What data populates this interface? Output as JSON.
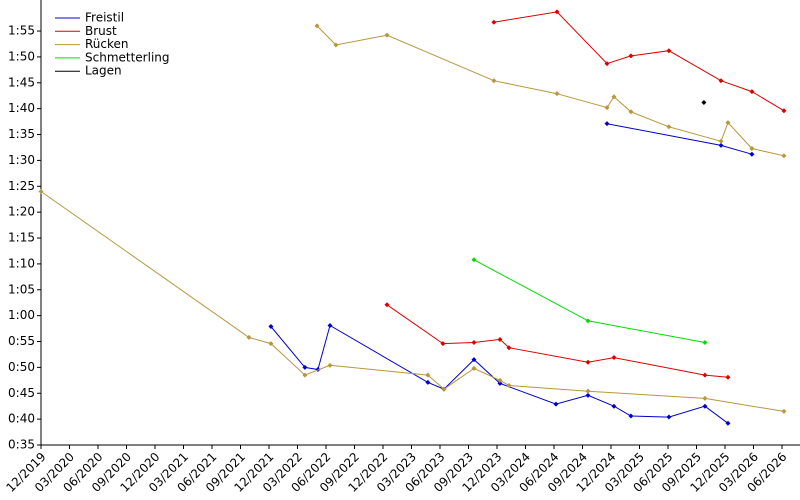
{
  "chart_data": {
    "type": "line",
    "legend": "upper left",
    "xlim": [
      2019.917,
      2026.575
    ],
    "ylim": [
      35,
      121
    ],
    "xticks": [
      {
        "value": 2019.917,
        "label": "12/2019"
      },
      {
        "value": 2020.167,
        "label": "03/2020"
      },
      {
        "value": 2020.417,
        "label": "06/2020"
      },
      {
        "value": 2020.667,
        "label": "09/2020"
      },
      {
        "value": 2020.917,
        "label": "12/2020"
      },
      {
        "value": 2021.167,
        "label": "03/2021"
      },
      {
        "value": 2021.417,
        "label": "06/2021"
      },
      {
        "value": 2021.667,
        "label": "09/2021"
      },
      {
        "value": 2021.917,
        "label": "12/2021"
      },
      {
        "value": 2022.167,
        "label": "03/2022"
      },
      {
        "value": 2022.417,
        "label": "06/2022"
      },
      {
        "value": 2022.667,
        "label": "09/2022"
      },
      {
        "value": 2022.917,
        "label": "12/2022"
      },
      {
        "value": 2023.167,
        "label": "03/2023"
      },
      {
        "value": 2023.417,
        "label": "06/2023"
      },
      {
        "value": 2023.667,
        "label": "09/2023"
      },
      {
        "value": 2023.917,
        "label": "12/2023"
      },
      {
        "value": 2024.167,
        "label": "03/2024"
      },
      {
        "value": 2024.417,
        "label": "06/2024"
      },
      {
        "value": 2024.667,
        "label": "09/2024"
      },
      {
        "value": 2024.917,
        "label": "12/2024"
      },
      {
        "value": 2025.167,
        "label": "03/2025"
      },
      {
        "value": 2025.417,
        "label": "06/2025"
      },
      {
        "value": 2025.667,
        "label": "09/2025"
      },
      {
        "value": 2025.917,
        "label": "12/2025"
      },
      {
        "value": 2026.167,
        "label": "03/2026"
      },
      {
        "value": 2026.417,
        "label": "06/2026"
      }
    ],
    "yticks": [
      {
        "value": 35,
        "label": "0:35"
      },
      {
        "value": 40,
        "label": "0:40"
      },
      {
        "value": 45,
        "label": "0:45"
      },
      {
        "value": 50,
        "label": "0:50"
      },
      {
        "value": 55,
        "label": "0:55"
      },
      {
        "value": 60,
        "label": "1:00"
      },
      {
        "value": 65,
        "label": "1:05"
      },
      {
        "value": 70,
        "label": "1:10"
      },
      {
        "value": 75,
        "label": "1:15"
      },
      {
        "value": 80,
        "label": "1:20"
      },
      {
        "value": 85,
        "label": "1:25"
      },
      {
        "value": 90,
        "label": "1:30"
      },
      {
        "value": 95,
        "label": "1:35"
      },
      {
        "value": 100,
        "label": "1:40"
      },
      {
        "value": 105,
        "label": "1:45"
      },
      {
        "value": 110,
        "label": "1:50"
      },
      {
        "value": 115,
        "label": "1:55"
      }
    ],
    "series": [
      {
        "name": "Freistil",
        "color": "#0000cc",
        "x": [
          2021.934,
          2022.232,
          2022.346,
          2022.452,
          2023.311,
          2023.452,
          2023.715,
          2023.943,
          2024.434,
          2024.715,
          2024.943,
          2025.092,
          2025.425,
          2025.741,
          2025.943,
          null,
          2024.882,
          2025.882,
          2026.153
        ],
        "values": [
          57.9,
          50.0,
          49.6,
          58.1,
          47.1,
          45.8,
          51.5,
          46.9,
          42.9,
          44.6,
          42.5,
          40.6,
          40.4,
          42.5,
          39.2,
          null,
          97.1,
          92.9,
          91.2
        ]
      },
      {
        "name": "Brust",
        "color": "#dd0000",
        "x": [
          2022.952,
          2023.443,
          2023.715,
          2023.943,
          2024.022,
          2024.715,
          2024.943,
          2025.741,
          2025.943,
          null,
          2023.89,
          2024.443,
          2024.882,
          2025.092,
          2025.425,
          2025.882,
          2026.153,
          2026.434
        ],
        "values": [
          62.1,
          54.6,
          54.8,
          55.4,
          53.8,
          51.0,
          51.9,
          48.5,
          48.1,
          null,
          116.7,
          118.7,
          108.7,
          110.2,
          111.2,
          105.4,
          103.3,
          99.6
        ]
      },
      {
        "name": "Rücken",
        "color": "#b8963c",
        "x": [
          2019.917,
          2021.741,
          2021.934,
          2022.232,
          2022.452,
          2023.311,
          2023.452,
          2023.715,
          2023.943,
          2024.022,
          2024.715,
          2025.741,
          2026.434,
          null,
          2022.338,
          2022.504,
          2022.952,
          2023.89,
          2024.443,
          2024.882,
          2024.943,
          2025.092,
          2025.425,
          2025.882,
          2025.943,
          2026.153,
          2026.434
        ],
        "values": [
          84.0,
          55.8,
          54.6,
          48.5,
          50.4,
          48.5,
          45.8,
          49.8,
          47.5,
          46.5,
          45.4,
          44.0,
          41.5,
          null,
          116.0,
          112.3,
          114.2,
          105.4,
          102.9,
          100.2,
          102.3,
          99.4,
          96.5,
          93.7,
          97.3,
          92.3,
          90.9
        ]
      },
      {
        "name": "Schmetterling",
        "color": "#00dd00",
        "x": [
          2023.715,
          2024.715,
          2025.741
        ],
        "values": [
          70.8,
          59.0,
          54.8
        ]
      },
      {
        "name": "Lagen",
        "color": "#000000",
        "x": [
          2025.732
        ],
        "values": [
          101.2
        ]
      }
    ]
  }
}
